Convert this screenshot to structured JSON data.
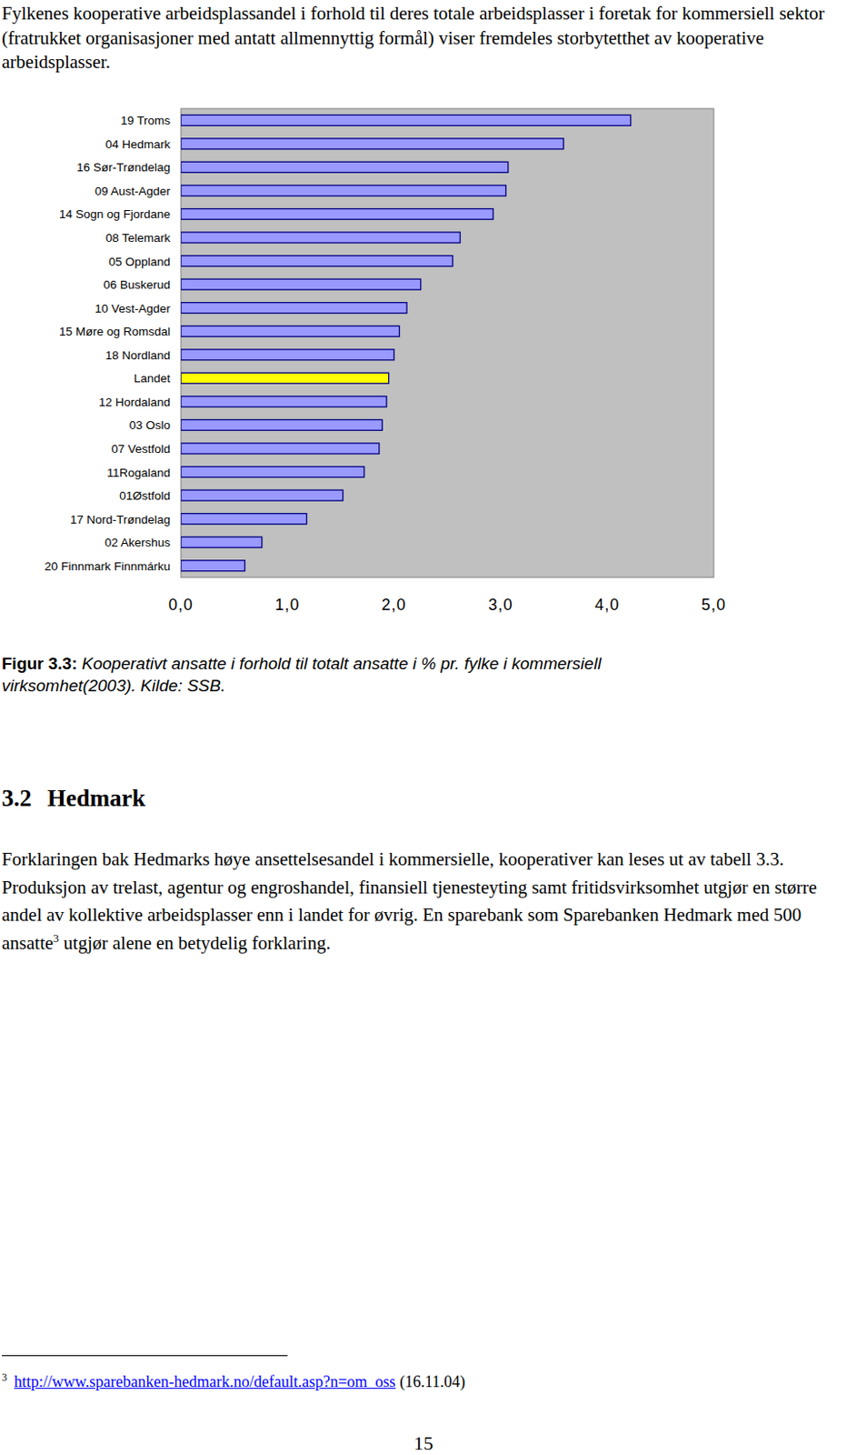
{
  "intro": "Fylkenes kooperative arbeidsplassandel i forhold til deres totale arbeidsplasser i foretak for kommersiell sektor (fratrukket organisasjoner med antatt allmennyttig formål) viser fremdeles storbytetthet av kooperative arbeidsplasser.",
  "chart_data": {
    "type": "bar",
    "orientation": "horizontal",
    "categories": [
      "19 Troms",
      "04 Hedmark",
      "16 Sør-Trøndelag",
      "09 Aust-Agder",
      "14 Sogn og Fjordane",
      "08 Telemark",
      "05 Oppland",
      "06 Buskerud",
      "10 Vest-Agder",
      "15 Møre og Romsdal",
      "18 Nordland",
      "Landet",
      "12 Hordaland",
      "03 Oslo",
      "07 Vestfold",
      "11Rogaland",
      "01Østfold",
      "17 Nord-Trøndelag",
      "02 Akershus",
      "20 Finnmark Finnmárku"
    ],
    "values": [
      4.22,
      3.59,
      3.07,
      3.05,
      2.93,
      2.62,
      2.55,
      2.25,
      2.12,
      2.05,
      2.0,
      1.95,
      1.93,
      1.89,
      1.86,
      1.72,
      1.52,
      1.18,
      0.76,
      0.6
    ],
    "colors": [
      "#9999ff",
      "#9999ff",
      "#9999ff",
      "#9999ff",
      "#9999ff",
      "#9999ff",
      "#9999ff",
      "#9999ff",
      "#9999ff",
      "#9999ff",
      "#9999ff",
      "#ffff00",
      "#9999ff",
      "#9999ff",
      "#9999ff",
      "#9999ff",
      "#9999ff",
      "#9999ff",
      "#9999ff",
      "#9999ff"
    ],
    "xlim": [
      0,
      5
    ],
    "xticks": [
      {
        "value": 0,
        "label": "0,0"
      },
      {
        "value": 1,
        "label": "1,0"
      },
      {
        "value": 2,
        "label": "2,0"
      },
      {
        "value": 3,
        "label": "3,0"
      },
      {
        "value": 4,
        "label": "4,0"
      },
      {
        "value": 5,
        "label": "5,0"
      }
    ],
    "grid": false
  },
  "caption": {
    "label": "Figur 3.3:",
    "text": "Kooperativt ansatte i forhold til totalt ansatte i % pr. fylke i kommersiell virksomhet(2003). Kilde: SSB."
  },
  "section": {
    "number": "3.2",
    "title": "Hedmark"
  },
  "body": {
    "before": "Forklaringen bak Hedmarks høye ansettelsesandel i kommersielle, kooperativer kan leses ut av tabell 3.3. Produksjon av trelast, agentur og engroshandel, finansiell tjenesteyting samt fritidsvirksomhet utgjør en større andel av kollektive arbeidsplasser enn i landet for øvrig. En sparebank som Sparebanken Hedmark med 500 ansatte",
    "footnote_ref": "3",
    "after": " utgjør alene en betydelig forklaring."
  },
  "footnote": {
    "number": "3",
    "url": "http://www.sparebanken-hedmark.no/default.asp?n=om_oss",
    "date": "(16.11.04)"
  },
  "page_number": "15"
}
